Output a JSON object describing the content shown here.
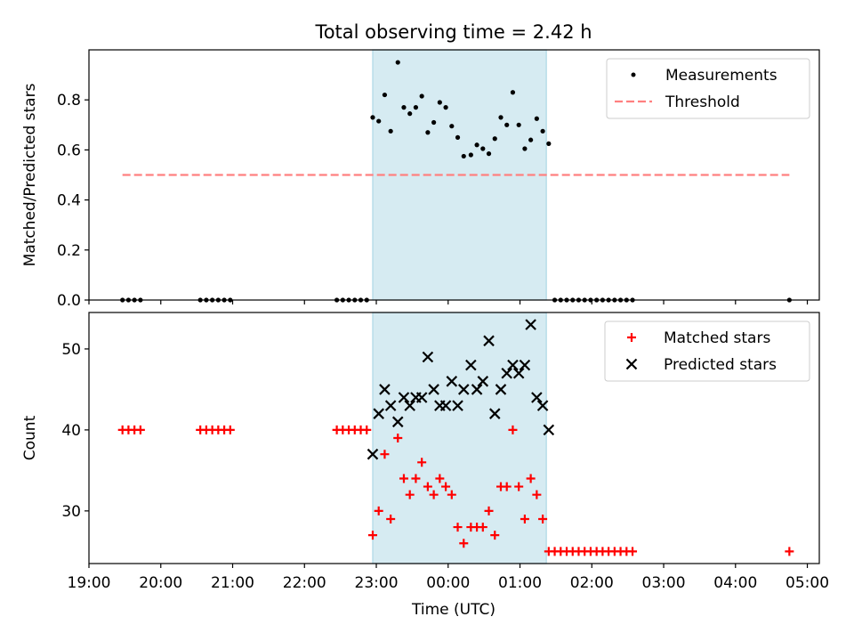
{
  "chart_data": {
    "title": "Total observing time = 2.42 h",
    "colors": {
      "shade": "#add8e6",
      "measurement": "#000000",
      "threshold": "#ff8080",
      "matched": "#ff0000",
      "predicted": "#000000"
    },
    "x_axis": {
      "label": "Time (UTC)",
      "type": "time",
      "range": [
        "19:00",
        "05:10"
      ],
      "ticks": [
        "19:00",
        "20:00",
        "21:00",
        "22:00",
        "23:00",
        "00:00",
        "01:00",
        "02:00",
        "03:00",
        "04:00",
        "05:00"
      ]
    },
    "observing_window": {
      "start": "22:57",
      "end": "01:22"
    },
    "charts": [
      {
        "type": "scatter",
        "ylabel": "Matched/Predicted stars",
        "ylim": [
          0,
          1.0
        ],
        "yticks": [
          "0.0",
          "0.2",
          "0.4",
          "0.6",
          "0.8"
        ],
        "legend": {
          "position": "top-right",
          "entries": [
            "Measurements",
            "Threshold"
          ]
        },
        "threshold": {
          "name": "Threshold",
          "value": 0.5,
          "x_range": [
            "19:28",
            "04:45"
          ]
        },
        "series": [
          {
            "name": "Measurements",
            "marker": "dot",
            "points": [
              [
                "19:28",
                0
              ],
              [
                "19:33",
                0
              ],
              [
                "19:38",
                0
              ],
              [
                "19:43",
                0
              ],
              [
                "20:33",
                0
              ],
              [
                "20:38",
                0
              ],
              [
                "20:43",
                0
              ],
              [
                "20:48",
                0
              ],
              [
                "20:53",
                0
              ],
              [
                "20:58",
                0
              ],
              [
                "22:27",
                0
              ],
              [
                "22:32",
                0
              ],
              [
                "22:37",
                0
              ],
              [
                "22:42",
                0
              ],
              [
                "22:47",
                0
              ],
              [
                "22:52",
                0
              ],
              [
                "22:57",
                0.73
              ],
              [
                "23:02",
                0.715
              ],
              [
                "23:07",
                0.82
              ],
              [
                "23:12",
                0.675
              ],
              [
                "23:18",
                0.95
              ],
              [
                "23:23",
                0.77
              ],
              [
                "23:28",
                0.745
              ],
              [
                "23:33",
                0.77
              ],
              [
                "23:38",
                0.815
              ],
              [
                "23:43",
                0.67
              ],
              [
                "23:48",
                0.71
              ],
              [
                "23:53",
                0.79
              ],
              [
                "23:58",
                0.77
              ],
              [
                "00:03",
                0.695
              ],
              [
                "00:08",
                0.65
              ],
              [
                "00:13",
                0.575
              ],
              [
                "00:19",
                0.58
              ],
              [
                "00:24",
                0.62
              ],
              [
                "00:29",
                0.605
              ],
              [
                "00:34",
                0.585
              ],
              [
                "00:39",
                0.645
              ],
              [
                "00:44",
                0.73
              ],
              [
                "00:49",
                0.7
              ],
              [
                "00:54",
                0.83
              ],
              [
                "00:59",
                0.7
              ],
              [
                "01:04",
                0.605
              ],
              [
                "01:09",
                0.64
              ],
              [
                "01:14",
                0.725
              ],
              [
                "01:19",
                0.675
              ],
              [
                "01:24",
                0.625
              ],
              [
                "01:29",
                0
              ],
              [
                "01:34",
                0
              ],
              [
                "01:39",
                0
              ],
              [
                "01:44",
                0
              ],
              [
                "01:49",
                0
              ],
              [
                "01:54",
                0
              ],
              [
                "01:59",
                0
              ],
              [
                "02:04",
                0
              ],
              [
                "02:09",
                0
              ],
              [
                "02:14",
                0
              ],
              [
                "02:19",
                0
              ],
              [
                "02:24",
                0
              ],
              [
                "02:29",
                0
              ],
              [
                "02:34",
                0
              ],
              [
                "04:45",
                0
              ]
            ]
          }
        ]
      },
      {
        "type": "scatter",
        "ylabel": "Count",
        "ylim": [
          23.5,
          54.5
        ],
        "yticks": [
          "30",
          "40",
          "50"
        ],
        "legend": {
          "position": "top-right",
          "entries": [
            "Matched stars",
            "Predicted stars"
          ]
        },
        "series": [
          {
            "name": "Matched stars",
            "marker": "plus",
            "points": [
              [
                "19:28",
                40
              ],
              [
                "19:33",
                40
              ],
              [
                "19:38",
                40
              ],
              [
                "19:43",
                40
              ],
              [
                "20:33",
                40
              ],
              [
                "20:38",
                40
              ],
              [
                "20:43",
                40
              ],
              [
                "20:48",
                40
              ],
              [
                "20:53",
                40
              ],
              [
                "20:58",
                40
              ],
              [
                "22:27",
                40
              ],
              [
                "22:32",
                40
              ],
              [
                "22:37",
                40
              ],
              [
                "22:42",
                40
              ],
              [
                "22:47",
                40
              ],
              [
                "22:52",
                40
              ],
              [
                "22:57",
                27
              ],
              [
                "23:02",
                30
              ],
              [
                "23:07",
                37
              ],
              [
                "23:12",
                29
              ],
              [
                "23:18",
                39
              ],
              [
                "23:23",
                34
              ],
              [
                "23:28",
                32
              ],
              [
                "23:33",
                34
              ],
              [
                "23:38",
                36
              ],
              [
                "23:43",
                33
              ],
              [
                "23:48",
                32
              ],
              [
                "23:53",
                34
              ],
              [
                "23:58",
                33
              ],
              [
                "00:03",
                32
              ],
              [
                "00:08",
                28
              ],
              [
                "00:13",
                26
              ],
              [
                "00:19",
                28
              ],
              [
                "00:24",
                28
              ],
              [
                "00:29",
                28
              ],
              [
                "00:34",
                30
              ],
              [
                "00:39",
                27
              ],
              [
                "00:44",
                33
              ],
              [
                "00:49",
                33
              ],
              [
                "00:54",
                40
              ],
              [
                "00:59",
                33
              ],
              [
                "01:04",
                29
              ],
              [
                "01:09",
                34
              ],
              [
                "01:14",
                32
              ],
              [
                "01:19",
                29
              ],
              [
                "01:24",
                25
              ],
              [
                "01:29",
                25
              ],
              [
                "01:34",
                25
              ],
              [
                "01:39",
                25
              ],
              [
                "01:44",
                25
              ],
              [
                "01:49",
                25
              ],
              [
                "01:54",
                25
              ],
              [
                "01:59",
                25
              ],
              [
                "02:04",
                25
              ],
              [
                "02:09",
                25
              ],
              [
                "02:14",
                25
              ],
              [
                "02:19",
                25
              ],
              [
                "02:24",
                25
              ],
              [
                "02:29",
                25
              ],
              [
                "02:34",
                25
              ],
              [
                "04:45",
                25
              ]
            ]
          },
          {
            "name": "Predicted stars",
            "marker": "x",
            "points": [
              [
                "22:57",
                37
              ],
              [
                "23:02",
                42
              ],
              [
                "23:07",
                45
              ],
              [
                "23:12",
                43
              ],
              [
                "23:18",
                41
              ],
              [
                "23:23",
                44
              ],
              [
                "23:28",
                43
              ],
              [
                "23:33",
                44
              ],
              [
                "23:38",
                44
              ],
              [
                "23:43",
                49
              ],
              [
                "23:48",
                45
              ],
              [
                "23:53",
                43
              ],
              [
                "23:58",
                43
              ],
              [
                "00:03",
                46
              ],
              [
                "00:08",
                43
              ],
              [
                "00:13",
                45
              ],
              [
                "00:19",
                48
              ],
              [
                "00:24",
                45
              ],
              [
                "00:29",
                46
              ],
              [
                "00:34",
                51
              ],
              [
                "00:39",
                42
              ],
              [
                "00:44",
                45
              ],
              [
                "00:49",
                47
              ],
              [
                "00:54",
                48
              ],
              [
                "00:59",
                47
              ],
              [
                "01:04",
                48
              ],
              [
                "01:09",
                53
              ],
              [
                "01:14",
                44
              ],
              [
                "01:19",
                43
              ],
              [
                "01:24",
                40
              ]
            ]
          }
        ]
      }
    ]
  }
}
